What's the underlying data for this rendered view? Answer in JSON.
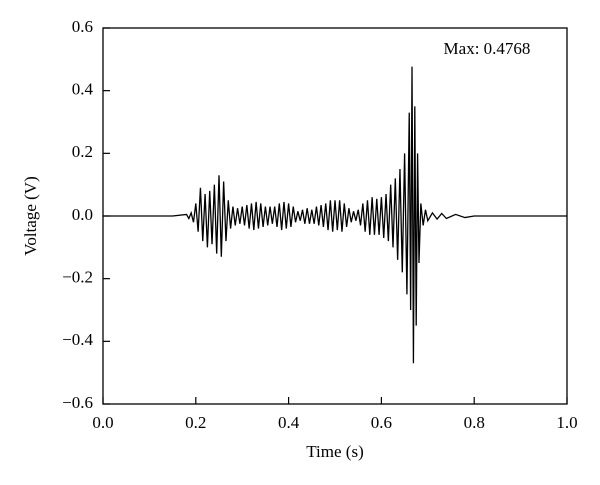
{
  "chart_data": {
    "type": "line",
    "x_label": "Time (s)",
    "y_label": "Voltage (V)",
    "annotation": "Max: 0.4768",
    "x": [
      0,
      0.15,
      0.18,
      0.185,
      0.19,
      0.195,
      0.2,
      0.205,
      0.21,
      0.215,
      0.22,
      0.225,
      0.23,
      0.235,
      0.24,
      0.245,
      0.25,
      0.255,
      0.26,
      0.265,
      0.27,
      0.275,
      0.28,
      0.285,
      0.29,
      0.295,
      0.3,
      0.305,
      0.31,
      0.315,
      0.32,
      0.325,
      0.33,
      0.335,
      0.34,
      0.345,
      0.35,
      0.355,
      0.36,
      0.365,
      0.37,
      0.375,
      0.38,
      0.385,
      0.39,
      0.395,
      0.4,
      0.405,
      0.41,
      0.415,
      0.42,
      0.425,
      0.43,
      0.435,
      0.44,
      0.445,
      0.45,
      0.455,
      0.46,
      0.465,
      0.47,
      0.475,
      0.48,
      0.485,
      0.49,
      0.495,
      0.5,
      0.505,
      0.51,
      0.515,
      0.52,
      0.525,
      0.53,
      0.535,
      0.54,
      0.545,
      0.55,
      0.555,
      0.56,
      0.565,
      0.57,
      0.575,
      0.58,
      0.585,
      0.59,
      0.595,
      0.6,
      0.605,
      0.61,
      0.615,
      0.62,
      0.625,
      0.63,
      0.635,
      0.64,
      0.645,
      0.65,
      0.655,
      0.66,
      0.663,
      0.666,
      0.669,
      0.672,
      0.675,
      0.678,
      0.681,
      0.685,
      0.69,
      0.695,
      0.7,
      0.71,
      0.72,
      0.73,
      0.74,
      0.76,
      0.78,
      0.8,
      1.0
    ],
    "series": [
      {
        "color": "#000000",
        "values": [
          0,
          0,
          0.005,
          -0.008,
          0.01,
          -0.02,
          0.04,
          -0.05,
          0.09,
          -0.08,
          0.07,
          -0.1,
          0.08,
          -0.09,
          0.1,
          -0.12,
          0.13,
          -0.13,
          0.11,
          -0.08,
          0.05,
          -0.04,
          0.03,
          -0.03,
          0.025,
          -0.025,
          0.03,
          -0.03,
          0.035,
          -0.04,
          0.04,
          -0.045,
          0.045,
          -0.04,
          0.04,
          -0.035,
          0.03,
          -0.03,
          0.03,
          -0.025,
          0.03,
          -0.035,
          0.04,
          -0.045,
          0.045,
          -0.04,
          0.04,
          -0.035,
          0.03,
          -0.02,
          0.015,
          -0.015,
          0.02,
          -0.025,
          0.025,
          -0.025,
          0.02,
          -0.025,
          0.03,
          -0.03,
          0.035,
          -0.035,
          0.04,
          -0.045,
          0.05,
          -0.05,
          0.05,
          -0.045,
          0.05,
          -0.05,
          0.04,
          -0.035,
          0.025,
          -0.02,
          0.015,
          -0.015,
          0.02,
          -0.03,
          0.04,
          -0.05,
          0.05,
          -0.06,
          0.06,
          -0.06,
          0.055,
          -0.06,
          0.06,
          -0.07,
          0.07,
          -0.08,
          0.1,
          -0.1,
          0.12,
          -0.14,
          0.15,
          -0.18,
          0.2,
          -0.25,
          0.33,
          -0.3,
          0.4768,
          -0.47,
          0.35,
          -0.35,
          0.2,
          -0.15,
          0.04,
          -0.03,
          0.02,
          -0.015,
          0.01,
          -0.01,
          0.008,
          -0.008,
          0.005,
          -0.005,
          0,
          0
        ]
      }
    ],
    "xlim": [
      0,
      1
    ],
    "ylim": [
      -0.6,
      0.6
    ],
    "xticks": [
      {
        "value": 0,
        "label": "0.0"
      },
      0.2,
      0.4,
      0.6,
      0.8,
      {
        "value": 1,
        "label": "1.0"
      }
    ],
    "yticks": [
      {
        "value": -0.6,
        "label": "−0.6"
      },
      {
        "value": -0.4,
        "label": "−0.4"
      },
      {
        "value": -0.2,
        "label": "−0.2"
      },
      {
        "value": 0,
        "label": "0.0"
      },
      0.2,
      0.4,
      0.6
    ],
    "grid": false
  }
}
